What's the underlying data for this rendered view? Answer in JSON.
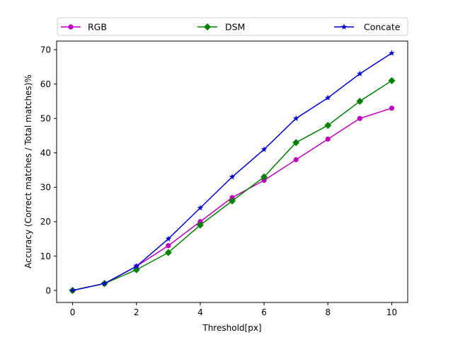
{
  "chart_data": {
    "type": "line",
    "title": "",
    "xlabel": "Threshold[px]",
    "ylabel": "Accuracy (Correct matches / Total matches)%",
    "x": [
      0,
      1,
      2,
      3,
      4,
      5,
      6,
      7,
      8,
      9,
      10
    ],
    "xlim": [
      -0.5,
      10.5
    ],
    "ylim": [
      -3.5,
      72.5
    ],
    "xticks": [
      0,
      2,
      4,
      6,
      8,
      10
    ],
    "yticks": [
      0,
      10,
      20,
      30,
      40,
      50,
      60,
      70
    ],
    "grid": false,
    "legend_position": "top, horizontal, outside plot",
    "series": [
      {
        "name": "RGB",
        "color": "#bf00bf",
        "marker": "circle",
        "values": [
          0,
          2,
          7,
          13,
          20,
          27,
          32,
          38,
          44,
          50,
          53
        ]
      },
      {
        "name": "DSM",
        "color": "#008000",
        "marker": "diamond",
        "values": [
          0,
          2,
          6,
          11,
          19,
          26,
          33,
          43,
          48,
          55,
          61
        ]
      },
      {
        "name": "Concate",
        "color": "#0000cc",
        "marker": "star",
        "values": [
          0,
          2,
          7,
          15,
          24,
          33,
          41,
          50,
          56,
          63,
          69
        ]
      }
    ]
  }
}
